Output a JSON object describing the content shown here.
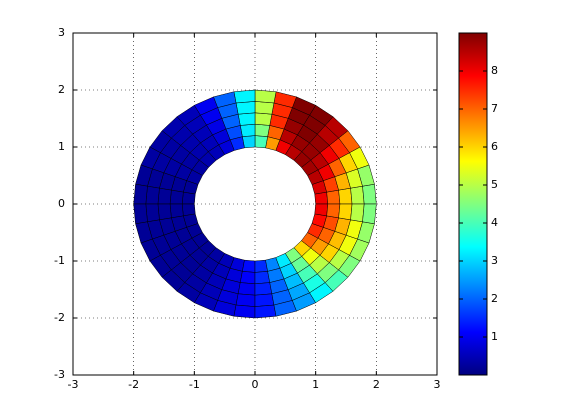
{
  "chart_data": {
    "type": "annulus-surface",
    "colormap": "jet",
    "edge_color": "#000000",
    "xlim": [
      -3,
      3
    ],
    "ylim": [
      -3,
      3
    ],
    "xticks": [
      -3,
      -2,
      -1,
      0,
      1,
      2,
      3
    ],
    "yticks": [
      -3,
      -2,
      -1,
      0,
      1,
      2,
      3
    ],
    "grid": true,
    "radii": [
      1,
      1.2,
      1.4,
      1.6,
      1.8,
      2
    ],
    "angles": [
      0,
      10,
      20,
      30,
      40,
      50,
      60,
      70,
      80,
      90,
      100,
      110,
      120,
      130,
      140,
      150,
      160,
      170,
      180,
      190,
      200,
      210,
      220,
      230,
      240,
      250,
      260,
      270,
      280,
      290,
      300,
      310,
      320,
      330,
      340,
      350,
      360
    ],
    "values": [
      [
        8,
        7,
        6,
        5,
        4.5
      ],
      [
        8.2,
        7.3,
        6.3,
        5.3,
        4.7
      ],
      [
        8.5,
        8,
        7,
        6,
        5.5
      ],
      [
        8.7,
        8.5,
        8,
        7.5,
        7
      ],
      [
        8.8,
        8.8,
        8.8,
        8.5,
        8.5
      ],
      [
        8.5,
        8.8,
        9,
        9,
        9
      ],
      [
        8,
        8.5,
        8.8,
        9,
        9
      ],
      [
        6.5,
        7,
        7.5,
        7.5,
        7.5
      ],
      [
        4,
        4.5,
        5,
        5,
        5
      ],
      [
        3,
        3.2,
        3.3,
        3.3,
        3.3
      ],
      [
        1.5,
        1.8,
        2,
        2,
        2
      ],
      [
        0.8,
        0.8,
        0.9,
        1,
        1
      ],
      [
        0.5,
        0.5,
        0.5,
        0.5,
        0.5
      ],
      [
        0.4,
        0.4,
        0.4,
        0.4,
        0.4
      ],
      [
        0.3,
        0.3,
        0.3,
        0.3,
        0.3
      ],
      [
        0.3,
        0.3,
        0.3,
        0.3,
        0.3
      ],
      [
        0.2,
        0.2,
        0.2,
        0.2,
        0.2
      ],
      [
        0.2,
        0.2,
        0.2,
        0.2,
        0.2
      ],
      [
        0.2,
        0.2,
        0.2,
        0.2,
        0.2
      ],
      [
        0.2,
        0.2,
        0.2,
        0.2,
        0.2
      ],
      [
        0.2,
        0.2,
        0.2,
        0.2,
        0.2
      ],
      [
        0.2,
        0.2,
        0.2,
        0.2,
        0.2
      ],
      [
        0.2,
        0.2,
        0.2,
        0.2,
        0.2
      ],
      [
        0.3,
        0.3,
        0.3,
        0.3,
        0.3
      ],
      [
        0.5,
        0.5,
        0.5,
        0.5,
        0.5
      ],
      [
        0.8,
        0.8,
        0.8,
        0.8,
        0.8
      ],
      [
        1.2,
        1.1,
        1,
        1,
        1
      ],
      [
        1.5,
        1.5,
        1.4,
        1.3,
        1.3
      ],
      [
        2.3,
        2.2,
        2,
        2,
        2
      ],
      [
        3.2,
        3,
        2.8,
        2.6,
        2.5
      ],
      [
        4.5,
        4.3,
        4,
        3.6,
        3.3
      ],
      [
        6,
        5.5,
        5,
        4.5,
        4
      ],
      [
        7,
        6.5,
        6,
        5,
        4.5
      ],
      [
        7.5,
        7,
        6.2,
        5.5,
        4.8
      ],
      [
        7.8,
        7.2,
        6.3,
        5.5,
        4.7
      ],
      [
        8,
        7,
        6,
        5,
        4.5
      ]
    ],
    "clim": [
      0,
      9
    ],
    "cticks": [
      1,
      2,
      3,
      4,
      5,
      6,
      7,
      8
    ]
  }
}
